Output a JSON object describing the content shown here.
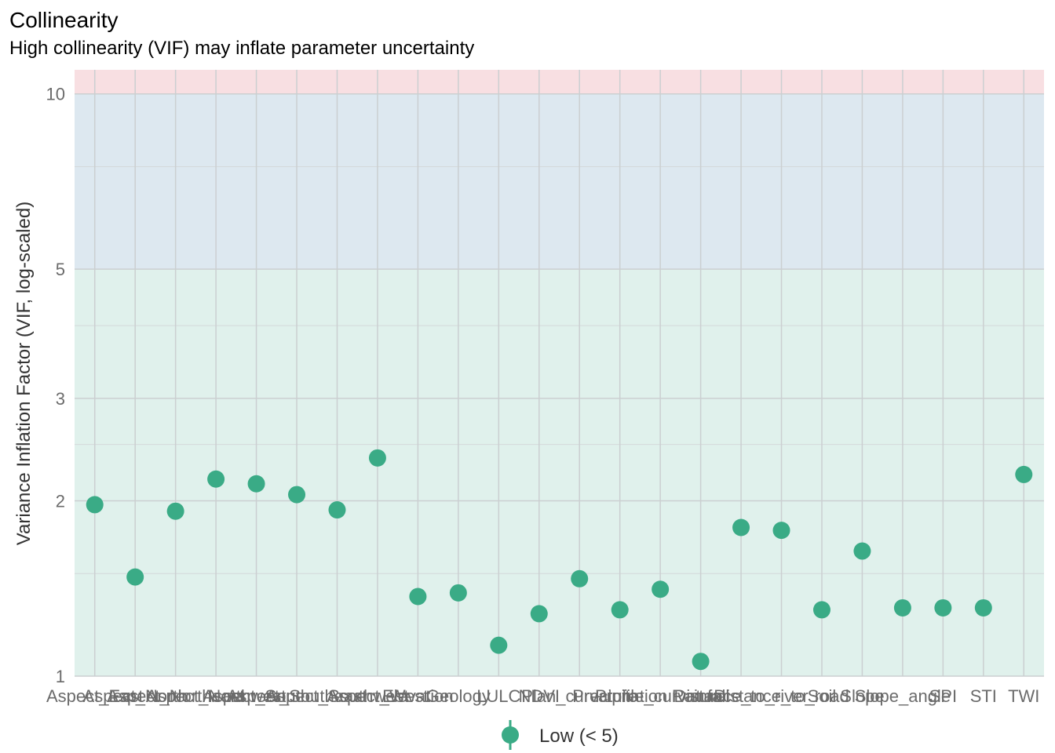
{
  "chart_data": {
    "type": "scatter",
    "title": "Collinearity",
    "subtitle": "High collinearity (VIF) may inflate parameter uncertainty",
    "xlabel": "",
    "ylabel": "Variance Inflation Factor (VIF, log-scaled)",
    "y_scale": "log",
    "ylim": [
      1,
      11
    ],
    "y_ticks": [
      1,
      2,
      3,
      5,
      10
    ],
    "grid": true,
    "bands": [
      {
        "from": 1,
        "to": 5,
        "color": "#e0f1ec"
      },
      {
        "from": 5,
        "to": 10,
        "color": "#dde8f0"
      },
      {
        "from": 10,
        "to": 11,
        "color": "#f8dfe2"
      }
    ],
    "point_color": "#3aab86",
    "categories": [
      "Aspect_East",
      "Aspect_North",
      "Aspect_Northeast",
      "Aspect_Northwest",
      "Aspect_South",
      "Aspect_Southeast",
      "Aspect_Southwest",
      "Aspect_West",
      "Elevation",
      "Geology",
      "LULC",
      "NDVI",
      "Plan_curvature",
      "Precipitation",
      "Profile_curvature",
      "Rainfall",
      "Distance_to_river",
      "Distance_to_road",
      "Soil",
      "Slope",
      "Slope_angle",
      "SPI",
      "STI",
      "TWI"
    ],
    "values": [
      1.97,
      1.48,
      1.92,
      2.18,
      2.14,
      2.05,
      1.93,
      2.37,
      1.37,
      1.39,
      1.13,
      1.28,
      1.47,
      1.3,
      1.41,
      1.06,
      1.8,
      1.78,
      1.3,
      1.64,
      1.31,
      1.31,
      1.31,
      2.22
    ],
    "legend": {
      "label": "Low (< 5)",
      "placement": "bottom"
    }
  }
}
